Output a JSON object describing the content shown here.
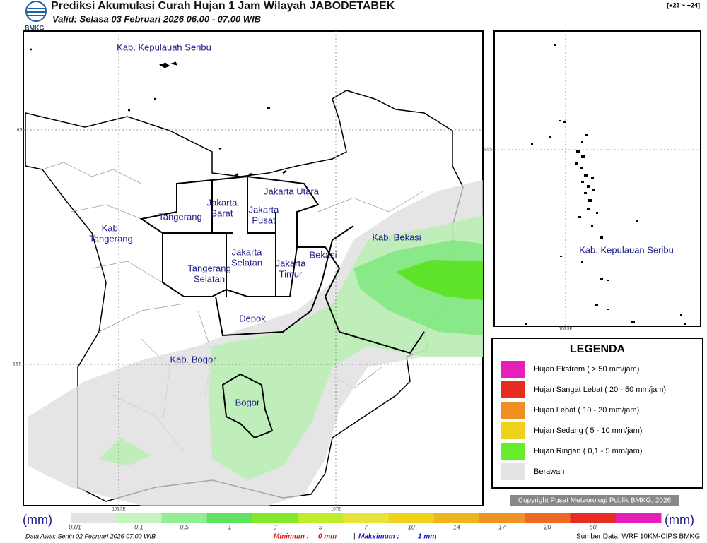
{
  "header": {
    "title": "Prediksi Akumulasi Curah Hujan 1 Jam Wilayah JABODETABEK",
    "subtitle": "Valid: Selasa 03 Februari 2026 06.00 - 07.00 WIB",
    "logo": "BMKG",
    "range": "[+23 ~ +24]"
  },
  "map": {
    "labels": [
      {
        "lines": [
          "Kab. Kepulauan Seribu"
        ]
      },
      {
        "lines": [
          "Jakarta Utara"
        ]
      },
      {
        "lines": [
          "Jakarta",
          "Barat"
        ]
      },
      {
        "lines": [
          "Jakarta",
          "Pusat"
        ]
      },
      {
        "lines": [
          "Tangerang"
        ]
      },
      {
        "lines": [
          "Kab.",
          "Tangerang"
        ]
      },
      {
        "lines": [
          "Jakarta",
          "Selatan"
        ]
      },
      {
        "lines": [
          "Jakarta",
          "Timur"
        ]
      },
      {
        "lines": [
          "Bekasi"
        ]
      },
      {
        "lines": [
          "Kab. Bekasi"
        ]
      },
      {
        "lines": [
          "Tangerang",
          "Selatan"
        ]
      },
      {
        "lines": [
          "Depok"
        ]
      },
      {
        "lines": [
          "Kab. Bogor"
        ]
      },
      {
        "lines": [
          "Bogor"
        ]
      }
    ],
    "lat_ticks": [
      "6S",
      "6.5S"
    ],
    "lon_ticks": [
      "106.5E",
      "107E"
    ]
  },
  "inset": {
    "label": "Kab. Kepulauan Seribu",
    "lat_tick": "5.5S",
    "lon_tick": "106.5E"
  },
  "legend": {
    "title": "LEGENDA",
    "items": [
      {
        "label": "Hujan Ekstrem ( > 50 mm/jam)",
        "color": "#e51fb7"
      },
      {
        "label": "Hujan Sangat Lebat ( 20 - 50 mm/jam)",
        "color": "#e82c22"
      },
      {
        "label": "Hujan Lebat ( 10 - 20 mm/jam)",
        "color": "#ef8f22"
      },
      {
        "label": "Hujan Sedang ( 5 - 10 mm/jam)",
        "color": "#efd21b"
      },
      {
        "label": "Hujan Ringan ( 0,1 - 5 mm/jam)",
        "color": "#64ee2c"
      },
      {
        "label": "Berawan",
        "color": "#e3e3e3"
      }
    ]
  },
  "copyright": "Copyright Pusat Meteorologi Publik BMKG, 2026",
  "colorbar": {
    "unit": "(mm)",
    "labels": [
      "0.01",
      "0.1",
      "0.5",
      "1",
      "3",
      "5",
      "7",
      "10",
      "14",
      "17",
      "20",
      "50"
    ],
    "colors": [
      "#e3e3e3",
      "#c6f3c0",
      "#92ee92",
      "#5fe35f",
      "#82e82a",
      "#c0ec2a",
      "#e8e43a",
      "#efd21b",
      "#efb51d",
      "#ef9424",
      "#ec6a22",
      "#e82c22",
      "#e51fb7"
    ]
  },
  "footer": {
    "source_date": "Data Awal: Senin 02 Februari 2026 07.00 WIB",
    "min_label": "Minimum :",
    "min_value": "0 mm",
    "separator": "|",
    "max_label": "Maksimum :",
    "max_value": "1 mm",
    "source": "Sumber Data: WRF 10KM-CIPS BMKG"
  }
}
